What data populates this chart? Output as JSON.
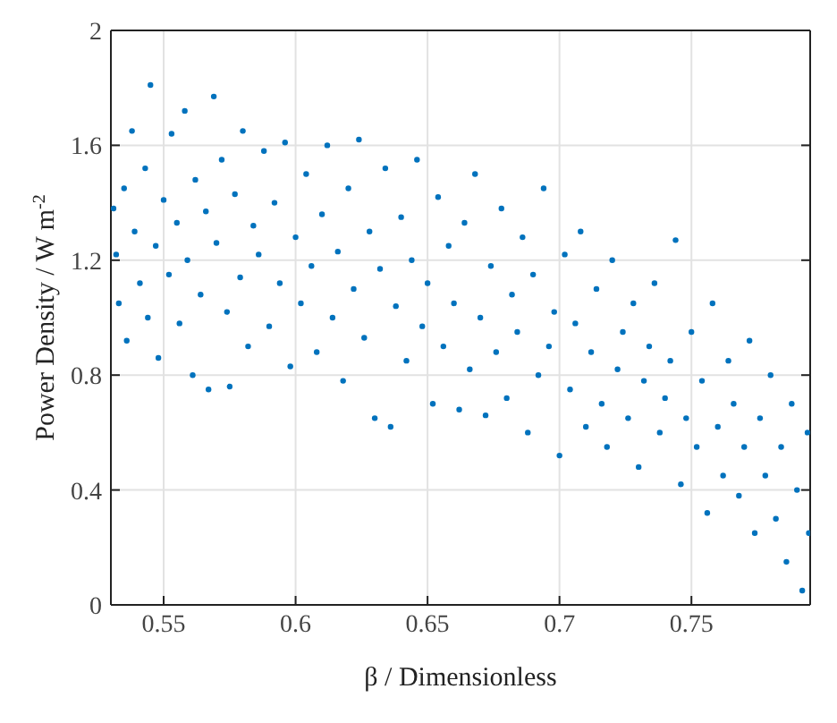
{
  "chart_data": {
    "type": "scatter",
    "xlabel": "β / Dimensionless",
    "ylabel": "Power Density / W m$^{-2}$",
    "xlim": [
      0.53,
      0.795
    ],
    "xticks": [
      0.55,
      0.6,
      0.65,
      0.7,
      0.75
    ],
    "ylim": [
      0,
      2
    ],
    "yticks": [
      0,
      0.4,
      0.8,
      1.2,
      1.6,
      2
    ],
    "grid": true,
    "marker": "circle",
    "series": [
      {
        "color": "#0072bd",
        "x": [
          0.531,
          0.532,
          0.533,
          0.535,
          0.536,
          0.538,
          0.539,
          0.541,
          0.543,
          0.544,
          0.545,
          0.547,
          0.548,
          0.55,
          0.552,
          0.553,
          0.555,
          0.556,
          0.558,
          0.559,
          0.561,
          0.562,
          0.564,
          0.566,
          0.567,
          0.569,
          0.57,
          0.572,
          0.574,
          0.575,
          0.577,
          0.579,
          0.58,
          0.582,
          0.584,
          0.586,
          0.588,
          0.59,
          0.592,
          0.594,
          0.596,
          0.598,
          0.6,
          0.602,
          0.604,
          0.606,
          0.608,
          0.61,
          0.612,
          0.614,
          0.616,
          0.618,
          0.62,
          0.622,
          0.624,
          0.626,
          0.628,
          0.63,
          0.632,
          0.634,
          0.636,
          0.638,
          0.64,
          0.642,
          0.644,
          0.646,
          0.648,
          0.65,
          0.652,
          0.654,
          0.656,
          0.658,
          0.66,
          0.662,
          0.664,
          0.666,
          0.668,
          0.67,
          0.672,
          0.674,
          0.676,
          0.678,
          0.68,
          0.682,
          0.684,
          0.686,
          0.688,
          0.69,
          0.692,
          0.694,
          0.696,
          0.698,
          0.7,
          0.702,
          0.704,
          0.706,
          0.708,
          0.71,
          0.712,
          0.714,
          0.716,
          0.718,
          0.72,
          0.722,
          0.724,
          0.726,
          0.728,
          0.73,
          0.732,
          0.734,
          0.736,
          0.738,
          0.74,
          0.742,
          0.744,
          0.746,
          0.748,
          0.75,
          0.752,
          0.754,
          0.756,
          0.758,
          0.76,
          0.762,
          0.764,
          0.766,
          0.768,
          0.77,
          0.772,
          0.774,
          0.776,
          0.778,
          0.78,
          0.782,
          0.784,
          0.786,
          0.788,
          0.79,
          0.792,
          0.794,
          0.7945
        ],
        "values": [
          1.38,
          1.22,
          1.05,
          1.45,
          0.92,
          1.65,
          1.3,
          1.12,
          1.52,
          1.0,
          1.81,
          1.25,
          0.86,
          1.41,
          1.15,
          1.64,
          1.33,
          0.98,
          1.72,
          1.2,
          0.8,
          1.48,
          1.08,
          1.37,
          0.75,
          1.77,
          1.26,
          1.55,
          1.02,
          0.76,
          1.43,
          1.14,
          1.65,
          0.9,
          1.32,
          1.22,
          1.58,
          0.97,
          1.4,
          1.12,
          1.61,
          0.83,
          1.28,
          1.05,
          1.5,
          1.18,
          0.88,
          1.36,
          1.6,
          1.0,
          1.23,
          0.78,
          1.45,
          1.1,
          1.62,
          0.93,
          1.3,
          0.65,
          1.17,
          1.52,
          0.62,
          1.04,
          1.35,
          0.85,
          1.2,
          1.55,
          0.97,
          1.12,
          0.7,
          1.42,
          0.9,
          1.25,
          1.05,
          0.68,
          1.33,
          0.82,
          1.5,
          1.0,
          0.66,
          1.18,
          0.88,
          1.38,
          0.72,
          1.08,
          0.95,
          1.28,
          0.6,
          1.15,
          0.8,
          1.45,
          0.9,
          1.02,
          0.52,
          1.22,
          0.75,
          0.98,
          1.3,
          0.62,
          0.88,
          1.1,
          0.7,
          0.55,
          1.2,
          0.82,
          0.95,
          0.65,
          1.05,
          0.48,
          0.78,
          0.9,
          1.12,
          0.6,
          0.72,
          0.85,
          1.27,
          0.42,
          0.65,
          0.95,
          0.55,
          0.78,
          0.32,
          1.05,
          0.62,
          0.45,
          0.85,
          0.7,
          0.38,
          0.55,
          0.92,
          0.25,
          0.65,
          0.45,
          0.8,
          0.3,
          0.55,
          0.15,
          0.7,
          0.4,
          0.05,
          0.6,
          0.25
        ]
      }
    ]
  }
}
